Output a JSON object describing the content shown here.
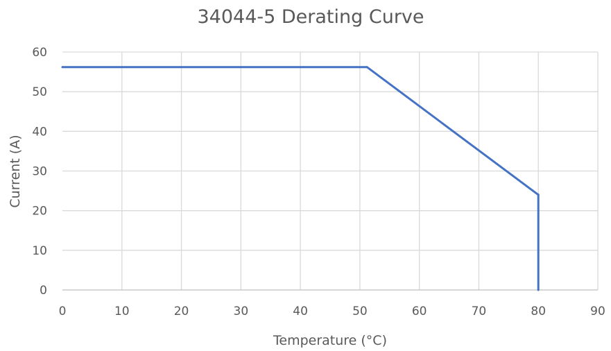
{
  "chart_data": {
    "type": "line",
    "title": "34044-5 Derating Curve",
    "xlabel": "Temperature (°C)",
    "ylabel": "Current (A)",
    "xlim": [
      0,
      90
    ],
    "ylim": [
      0,
      60
    ],
    "x_ticks": [
      "0",
      "10",
      "20",
      "30",
      "40",
      "50",
      "60",
      "70",
      "80",
      "90"
    ],
    "y_ticks": [
      "0",
      "10",
      "20",
      "30",
      "40",
      "50",
      "60"
    ],
    "grid": true,
    "legend": "none",
    "series": [
      {
        "color": "#4472c4",
        "x": [
          0,
          51.2,
          80,
          80
        ],
        "y": [
          56.2,
          56.2,
          24,
          0
        ]
      }
    ]
  }
}
